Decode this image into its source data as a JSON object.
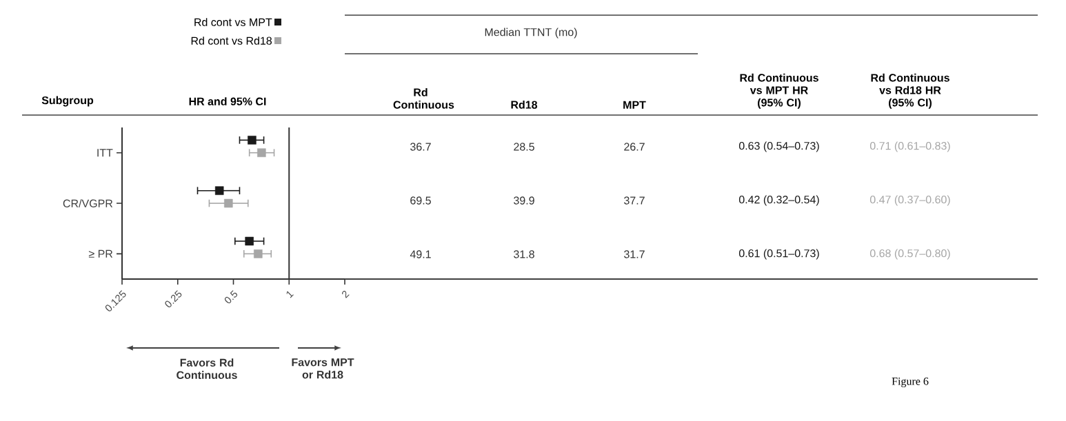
{
  "chart_data": {
    "type": "scatter",
    "orientation": "horizontal",
    "log": "x",
    "marker": "square",
    "legend": "top left",
    "categories": [
      "ITT",
      "CR/VGPR",
      "≥ PR"
    ],
    "xlim": [
      0.125,
      2
    ],
    "xticks": [
      0.125,
      0.25,
      0.5,
      1,
      2
    ],
    "ref_lines": [
      {
        "axis": "x",
        "value": 1
      }
    ],
    "series": [
      {
        "name": "Rd cont vs MPT",
        "color": "#1a1a1a",
        "values": [
          0.63,
          0.42,
          0.61
        ],
        "errors": [
          [
            0.54,
            0.73
          ],
          [
            0.32,
            0.54
          ],
          [
            0.51,
            0.73
          ]
        ],
        "value_labels": [
          "0.63 (0.54–0.73)",
          "0.42 (0.32–0.54)",
          "0.61 (0.51–0.73)"
        ]
      },
      {
        "name": "Rd cont vs Rd18",
        "color": "#a6a6a6",
        "values": [
          0.71,
          0.47,
          0.68
        ],
        "errors": [
          [
            0.61,
            0.83
          ],
          [
            0.37,
            0.6
          ],
          [
            0.57,
            0.8
          ]
        ],
        "value_labels": [
          "0.71 (0.61–0.83)",
          "0.47 (0.37–0.60)",
          "0.68 (0.57–0.80)"
        ]
      }
    ],
    "annotations": [
      "Subgroup",
      "HR and 95% CI",
      "Median TTNT (mo)",
      "Rd Continuous",
      "Rd18",
      "MPT",
      "Rd Continuous vs MPT HR (95% CI)",
      "Rd Continuous vs Rd18 HR (95% CI)",
      "36.7",
      "28.5",
      "26.7",
      "69.5",
      "39.9",
      "37.7",
      "49.1",
      "31.8",
      "31.7",
      "Favors Rd Continuous",
      "Favors MPT or Rd18",
      "Figure 6"
    ]
  }
}
